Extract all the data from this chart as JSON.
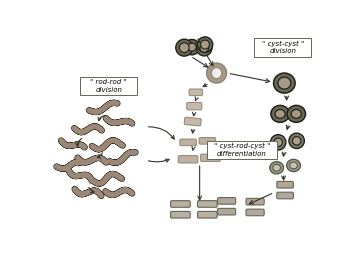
{
  "bg_color": "#ffffff",
  "label_rod_rod": "\" rod-rod \"\ndivision",
  "label_cyst_cyst": "\" cyst-cyst \"\ndivision",
  "label_differentiation": "\" cyst-rod-cyst \"\ndifferentiation",
  "rod_color_light": "#b0a090",
  "rod_color_dark": "#7a6a5a",
  "rod_edge": "#4a3a2a",
  "cyst_fill_light": "#c8b8a8",
  "cyst_fill_mid": "#a89888",
  "cyst_fill_dark": "#686858",
  "cyst_edge_light": "#888878",
  "cyst_edge_dark": "#222218",
  "cyst_inner_white": "#f0ede8",
  "cyst_inner_mid": "#c8b8a8",
  "arrow_color": "#333328",
  "box_edge": "#666656",
  "box_fill": "#ffffff",
  "wavy_color": "#9a8878",
  "wavy_edge": "#3a2a1a"
}
